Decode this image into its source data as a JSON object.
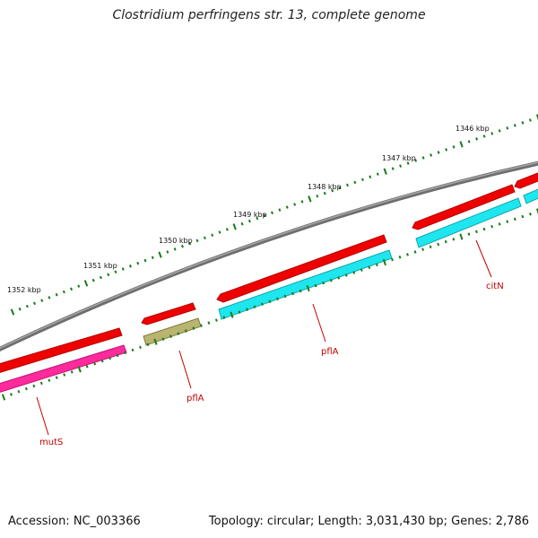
{
  "title": "Clostridium perfringens str. 13, complete genome",
  "footer": {
    "accession": "Accession: NC_003366",
    "topology": "Topology: circular; Length: 3,031,430 bp; Genes: 2,786"
  },
  "scale_labels": [
    "1352 kbp",
    "1351 kbp",
    "1350 kbp",
    "1349 kbp",
    "1348 kbp",
    "1347 kbp",
    "1346 kbp"
  ],
  "gene_labels": [
    "mutS",
    "pflA",
    "pflA",
    "citN"
  ],
  "colors": {
    "backbone": "#7d7d7d",
    "cds_forward": "#ee0000",
    "mutS": "#ff2a9c",
    "pflA_small": "#b9b470",
    "pflA_large": "#1ee6ee",
    "citN": "#1ee6ee",
    "tick": "#1a7a1a",
    "label": "#c00000"
  }
}
